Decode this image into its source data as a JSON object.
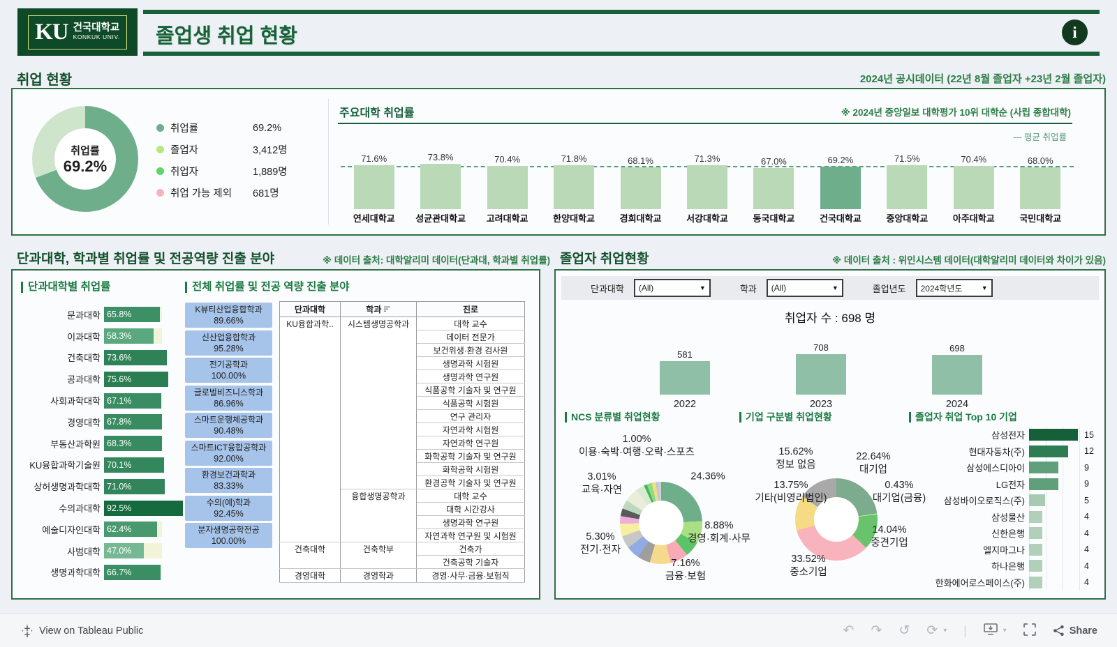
{
  "header": {
    "logo_ku": "KU",
    "logo_kr": "건국대학교",
    "logo_en": "KONKUK UNIV.",
    "title": "졸업생 취업 현황",
    "info_icon": "i"
  },
  "overview": {
    "section_title": "취업 현황",
    "note": "2024년 공시데이터 (22년 8월 졸업자 +23년 2월 졸업자)",
    "donut_center_label": "취업률",
    "donut_center_value": "69.2%",
    "legend": [
      {
        "label": "취업률",
        "value": "69.2%",
        "color": "#6fae8b"
      },
      {
        "label": "졸업자",
        "value": "3,412명",
        "color": "#b7e87e"
      },
      {
        "label": "취업자",
        "value": "1,889명",
        "color": "#5fd56d"
      },
      {
        "label": "취업 가능 제외",
        "value": "681명",
        "color": "#f9b2ba"
      }
    ]
  },
  "universities_header": {
    "title": "주요대학 취업률",
    "note": "※ 2024년 중앙일보 대학평가 10위 대학순 (사립 종합대학)",
    "avg_label": "--- 평균 취업률"
  },
  "college_section": {
    "title": "단과대학, 학과별 취업률 및 전공역량 진출 분야",
    "note": "※ 데이터 출처: 대학알리미 데이터(단과대, 학과별 취업률)",
    "left_heading": "단과대학별 취업률",
    "mid_heading": "전체 취업률 및 전공 역량 진출 분야"
  },
  "grad_section": {
    "title": "졸업자 취업현황",
    "note": "※ 데이터 출처 : 위인시스템 데이터(대학알리미 데이터와 차이가 있음)",
    "filters": [
      {
        "label": "단과대학",
        "value": "(All)"
      },
      {
        "label": "학과",
        "value": "(All)"
      },
      {
        "label": "졸업년도",
        "value": "2024학년도"
      }
    ],
    "total": "취업자 수 : 698 명",
    "ncs_heading": "NCS 분류별 취업현황",
    "company_heading": "기업 구분별 취업현황",
    "top10_heading": "졸업자 취업 Top 10 기업"
  },
  "toolbar": {
    "attribution": "View on Tableau Public",
    "share_label": "Share",
    "icons": [
      "tableau-logo-icon",
      "undo-icon",
      "redo-icon",
      "replay-icon",
      "refresh-icon",
      "download-icon",
      "fullscreen-icon",
      "share-icon"
    ]
  },
  "chart_data": [
    {
      "id": "overview_donut",
      "type": "pie",
      "title": "취업률",
      "slices": [
        {
          "label": "취업률",
          "value": 69.2,
          "color": "#6fae8b"
        },
        {
          "label": "미취업",
          "value": 30.8,
          "color": "#cfe5cb"
        }
      ]
    },
    {
      "id": "universities",
      "type": "bar",
      "title": "주요대학 취업률",
      "unit": "%",
      "average": 70.4,
      "bar_color": "#b9d9b7",
      "highlight_color": "#6fae8b",
      "items": [
        {
          "name": "연세대학교",
          "value": 71.6
        },
        {
          "name": "성균관대학교",
          "value": 73.8
        },
        {
          "name": "고려대학교",
          "value": 70.4
        },
        {
          "name": "한양대학교",
          "value": 71.8
        },
        {
          "name": "경희대학교",
          "value": 68.1
        },
        {
          "name": "서강대학교",
          "value": 71.3
        },
        {
          "name": "동국대학교",
          "value": 67.0
        },
        {
          "name": "건국대학교",
          "value": 69.2,
          "highlight": true
        },
        {
          "name": "중앙대학교",
          "value": 71.5
        },
        {
          "name": "아주대학교",
          "value": 70.4
        },
        {
          "name": "국민대학교",
          "value": 68.0
        }
      ]
    },
    {
      "id": "colleges",
      "type": "bar",
      "title": "단과대학별 취업률",
      "unit": "%",
      "items": [
        {
          "name": "문과대학",
          "value": 65.8,
          "color": "#3d9066"
        },
        {
          "name": "이과대학",
          "value": 58.3,
          "color": "#5aa97e"
        },
        {
          "name": "건축대학",
          "value": 73.6,
          "color": "#2f8257"
        },
        {
          "name": "공과대학",
          "value": 75.6,
          "color": "#2a7e52"
        },
        {
          "name": "사회과학대학",
          "value": 67.1,
          "color": "#3a8d63"
        },
        {
          "name": "경영대학",
          "value": 67.8,
          "color": "#398c62"
        },
        {
          "name": "부동산과학원",
          "value": 68.3,
          "color": "#388b61"
        },
        {
          "name": "KU융합과학기술원",
          "value": 70.1,
          "color": "#34875d"
        },
        {
          "name": "상허생명과학대학",
          "value": 71.0,
          "color": "#32855b"
        },
        {
          "name": "수의과대학",
          "value": 92.5,
          "color": "#166b3e"
        },
        {
          "name": "예술디자인대학",
          "value": 62.4,
          "color": "#49996f"
        },
        {
          "name": "사범대학",
          "value": 47.0,
          "color": "#76b893"
        },
        {
          "name": "생명과학대학",
          "value": 66.7,
          "color": "#3b8e64"
        }
      ]
    },
    {
      "id": "departments",
      "type": "table",
      "title": "전체 취업률 및 전공 역량 진출 분야",
      "items": [
        {
          "name": "K뷰티산업융합학과",
          "value": "89.66%"
        },
        {
          "name": "신산업융합학과",
          "value": "95.28%"
        },
        {
          "name": "전기공학과",
          "value": "100.00%"
        },
        {
          "name": "글로벌비즈니스학과",
          "value": "86.96%"
        },
        {
          "name": "스마트운행체공학과",
          "value": "90.48%"
        },
        {
          "name": "스마트ICT융합공학과",
          "value": "92.00%"
        },
        {
          "name": "환경보건과학과",
          "value": "83.33%"
        },
        {
          "name": "수의(예)학과",
          "value": "92.45%"
        },
        {
          "name": "분자생명공학전공",
          "value": "100.00%"
        }
      ]
    },
    {
      "id": "career_table",
      "type": "table",
      "headers": [
        "단과대학",
        "학과",
        "진로"
      ],
      "groups": [
        {
          "college": "KU융합과학..",
          "depts": [
            {
              "name": "시스템생명공학과",
              "careers": [
                "대학 교수",
                "데이터 전문가",
                "보건위생·환경 검사원",
                "생명과학 시험원",
                "생명과학 연구원",
                "식품공학 기술자 및 연구원",
                "식품공학 시험원",
                "연구 관리자",
                "자연과학 시험원",
                "자연과학 연구원",
                "화학공학 기술자 및 연구원",
                "화학공학 시험원",
                "환경공학 기술자 및 연구원"
              ]
            },
            {
              "name": "융합생명공학과",
              "careers": [
                "대학 교수",
                "대학 시간강사",
                "생명과학 연구원",
                "자연과학 연구원 및 시험원"
              ]
            }
          ]
        },
        {
          "college": "건축대학",
          "depts": [
            {
              "name": "건축학부",
              "careers": [
                "건축가",
                "건축공학 기술자"
              ]
            }
          ]
        },
        {
          "college": "경영대학",
          "depts": [
            {
              "name": "경영학과",
              "careers": [
                "경영·사무·금융·보험직"
              ]
            }
          ]
        }
      ]
    },
    {
      "id": "years",
      "type": "bar",
      "title": "취업자 수 : 698 명",
      "categories": [
        "2022",
        "2023",
        "2024"
      ],
      "values": [
        581,
        708,
        698
      ],
      "bar_color": "#8fbfa6"
    },
    {
      "id": "ncs",
      "type": "pie",
      "title": "NCS 분류별 취업현황",
      "slices": [
        {
          "label": "",
          "value": 24.36,
          "color": "#6fae8b"
        },
        {
          "label": "경영·회계·사무",
          "value": 8.88,
          "color": "#a9e083"
        },
        {
          "label": "",
          "value": 6.0,
          "color": "#5cc468"
        },
        {
          "label": "금융·보험",
          "value": 7.16,
          "color": "#f8abb6"
        },
        {
          "label": "",
          "value": 8.2,
          "color": "#f5d98c"
        },
        {
          "label": "",
          "value": 5.0,
          "color": "#9e9e9e"
        },
        {
          "label": "전기·전자",
          "value": 5.3,
          "color": "#94aae2"
        },
        {
          "label": "",
          "value": 5.0,
          "color": "#c7c7c7"
        },
        {
          "label": "",
          "value": 5.0,
          "color": "#f6ef9f"
        },
        {
          "label": "교육·자연",
          "value": 3.01,
          "color": "#efacdd"
        },
        {
          "label": "",
          "value": 3.0,
          "color": "#5a5a5a"
        },
        {
          "label": "",
          "value": 3.5,
          "color": "#bcd9c0"
        },
        {
          "label": "",
          "value": 5.5,
          "color": "#e9edd9"
        },
        {
          "label": "",
          "value": 3.5,
          "color": "#d6ecd2"
        },
        {
          "label": "",
          "value": 1.2,
          "color": "#49b553"
        },
        {
          "label": "",
          "value": 2.0,
          "color": "#8edc8a"
        },
        {
          "label": "",
          "value": 1.6,
          "color": "#f1e07e"
        },
        {
          "label": "이용·숙박·여행·오락·스포츠",
          "value": 1.0,
          "color": "#b9c5f0"
        },
        {
          "label": "",
          "value": 1.07,
          "color": "#d9cfc1"
        }
      ],
      "callouts": [
        {
          "pct": "1.00%",
          "name": "이용·숙박·여행·오락·스포츠"
        },
        {
          "pct": "24.36%",
          "name": ""
        },
        {
          "pct": "3.01%",
          "name": "교육·자연"
        },
        {
          "pct": "8.88%",
          "name": "경영·회계·사무"
        },
        {
          "pct": "5.30%",
          "name": "전기·전자"
        },
        {
          "pct": "7.16%",
          "name": "금융·보험"
        }
      ]
    },
    {
      "id": "company",
      "type": "pie",
      "title": "기업 구분별 취업현황",
      "slices": [
        {
          "label": "대기업",
          "value": 22.64,
          "color": "#7dab8d"
        },
        {
          "label": "대기업(금융)",
          "value": 0.43,
          "color": "#b8e68d"
        },
        {
          "label": "중견기업",
          "value": 14.04,
          "color": "#69c36d"
        },
        {
          "label": "중소기업",
          "value": 33.52,
          "color": "#f8b3bd"
        },
        {
          "label": "기타(비영리법인)",
          "value": 13.75,
          "color": "#f6db85"
        },
        {
          "label": "정보 없음",
          "value": 15.62,
          "color": "#a9a9a9"
        }
      ],
      "callouts": [
        {
          "pct": "15.62%",
          "name": "정보 없음"
        },
        {
          "pct": "22.64%",
          "name": "대기업"
        },
        {
          "pct": "13.75%",
          "name": "기타(비영리법인)"
        },
        {
          "pct": "0.43%",
          "name": "대기업(금융)"
        },
        {
          "pct": "14.04%",
          "name": "중견기업"
        },
        {
          "pct": "33.52%",
          "name": "중소기업"
        }
      ]
    },
    {
      "id": "top10",
      "type": "bar",
      "title": "졸업자 취업 Top 10 기업",
      "items": [
        {
          "name": "삼성전자",
          "value": 15,
          "color": "#155f39"
        },
        {
          "name": "현대자동차(주)",
          "value": 12,
          "color": "#2e7c51"
        },
        {
          "name": "삼성에스디아이",
          "value": 9,
          "color": "#5f9f7a"
        },
        {
          "name": "LG전자",
          "value": 9,
          "color": "#5f9f7a"
        },
        {
          "name": "삼성바이오로직스(주)",
          "value": 5,
          "color": "#a7cab1"
        },
        {
          "name": "삼성물산",
          "value": 4,
          "color": "#b0d0b9"
        },
        {
          "name": "신한은행",
          "value": 4,
          "color": "#b0d0b9"
        },
        {
          "name": "엘지마그나",
          "value": 4,
          "color": "#b0d0b9"
        },
        {
          "name": "하나은행",
          "value": 4,
          "color": "#b0d0b9"
        },
        {
          "name": "한화에어로스페이스(주)",
          "value": 4,
          "color": "#b0d0b9"
        }
      ]
    }
  ]
}
